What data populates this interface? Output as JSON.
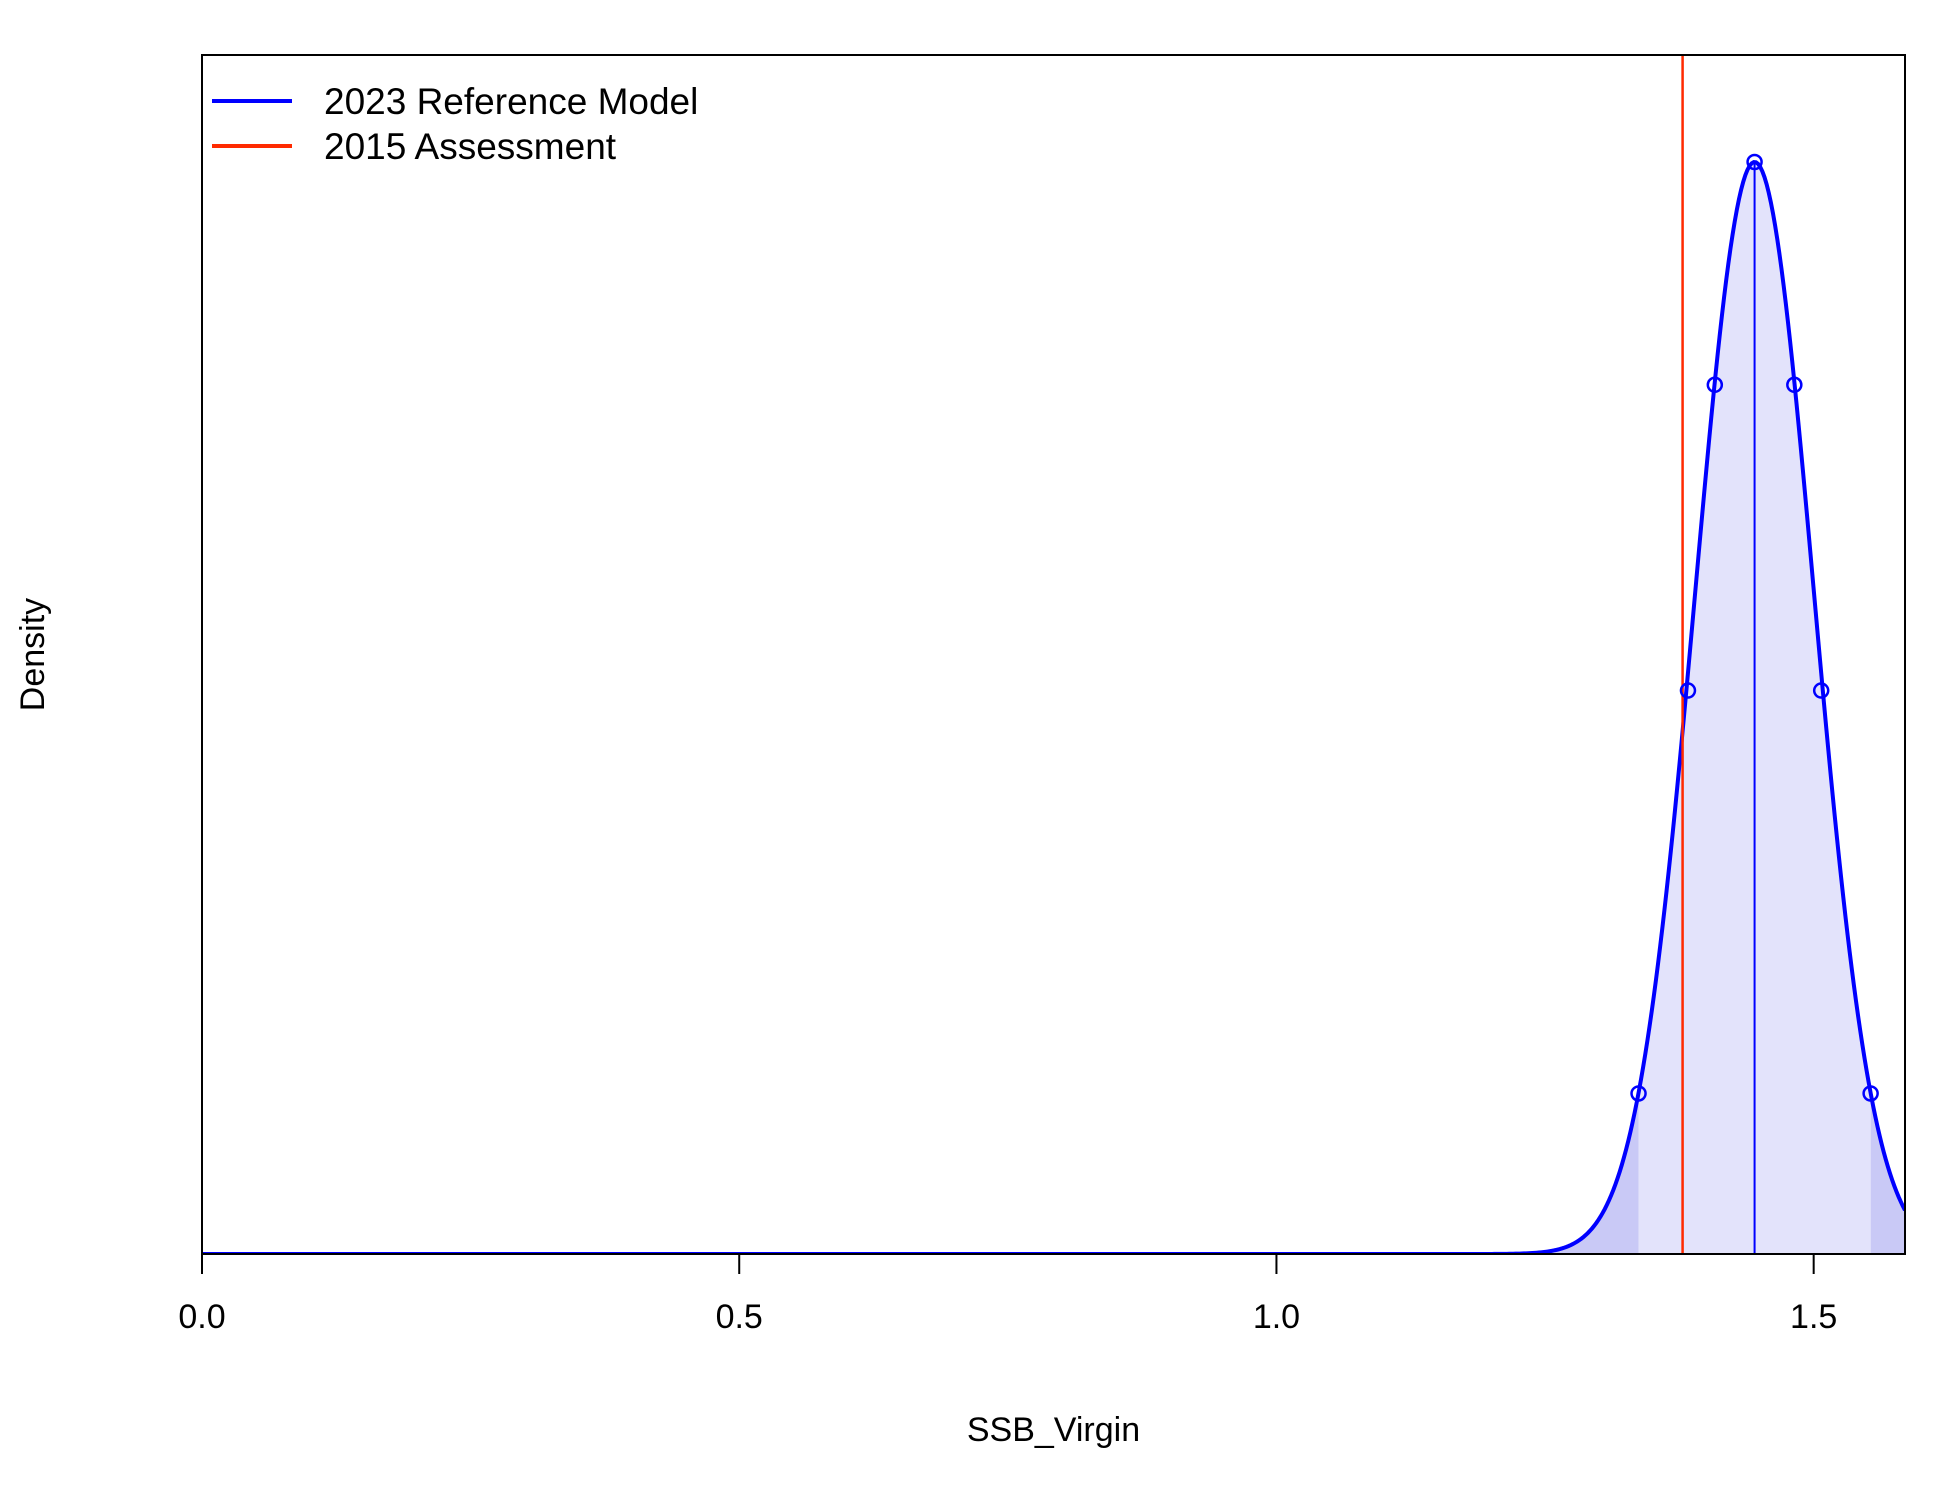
{
  "chart_data": {
    "type": "area",
    "xlabel": "SSB_Virgin",
    "ylabel": "Density",
    "xlim": [
      0,
      1.585
    ],
    "ylim": [
      0,
      1.0
    ],
    "y_ticks_shown": false,
    "grid": false,
    "legend_position": "top-left",
    "x_ticks": [
      {
        "value": 0.0,
        "label": "0.0"
      },
      {
        "value": 0.5,
        "label": "0.5"
      },
      {
        "value": 1.0,
        "label": "1.0"
      },
      {
        "value": 1.5,
        "label": "1.5"
      }
    ],
    "series": [
      {
        "name": "2023 Reference Model",
        "kind": "normal-density",
        "mean": 1.445,
        "sd": 0.0552,
        "color": "#0000ff",
        "fill_color": "#e3e3fb",
        "tail_fill_color": "#c9c9f6",
        "interval_bounds": [
          1.337,
          1.553
        ],
        "quantile_points": [
          {
            "x": 1.337,
            "y": 0.147
          },
          {
            "x": 1.383,
            "y": 0.516
          },
          {
            "x": 1.408,
            "y": 0.796
          },
          {
            "x": 1.445,
            "y": 1.0
          },
          {
            "x": 1.482,
            "y": 0.796
          },
          {
            "x": 1.507,
            "y": 0.516
          },
          {
            "x": 1.553,
            "y": 0.147
          }
        ]
      },
      {
        "name": "2015 Assessment",
        "kind": "vertical-line",
        "x": 1.378,
        "color": "#ff2a00"
      }
    ]
  }
}
